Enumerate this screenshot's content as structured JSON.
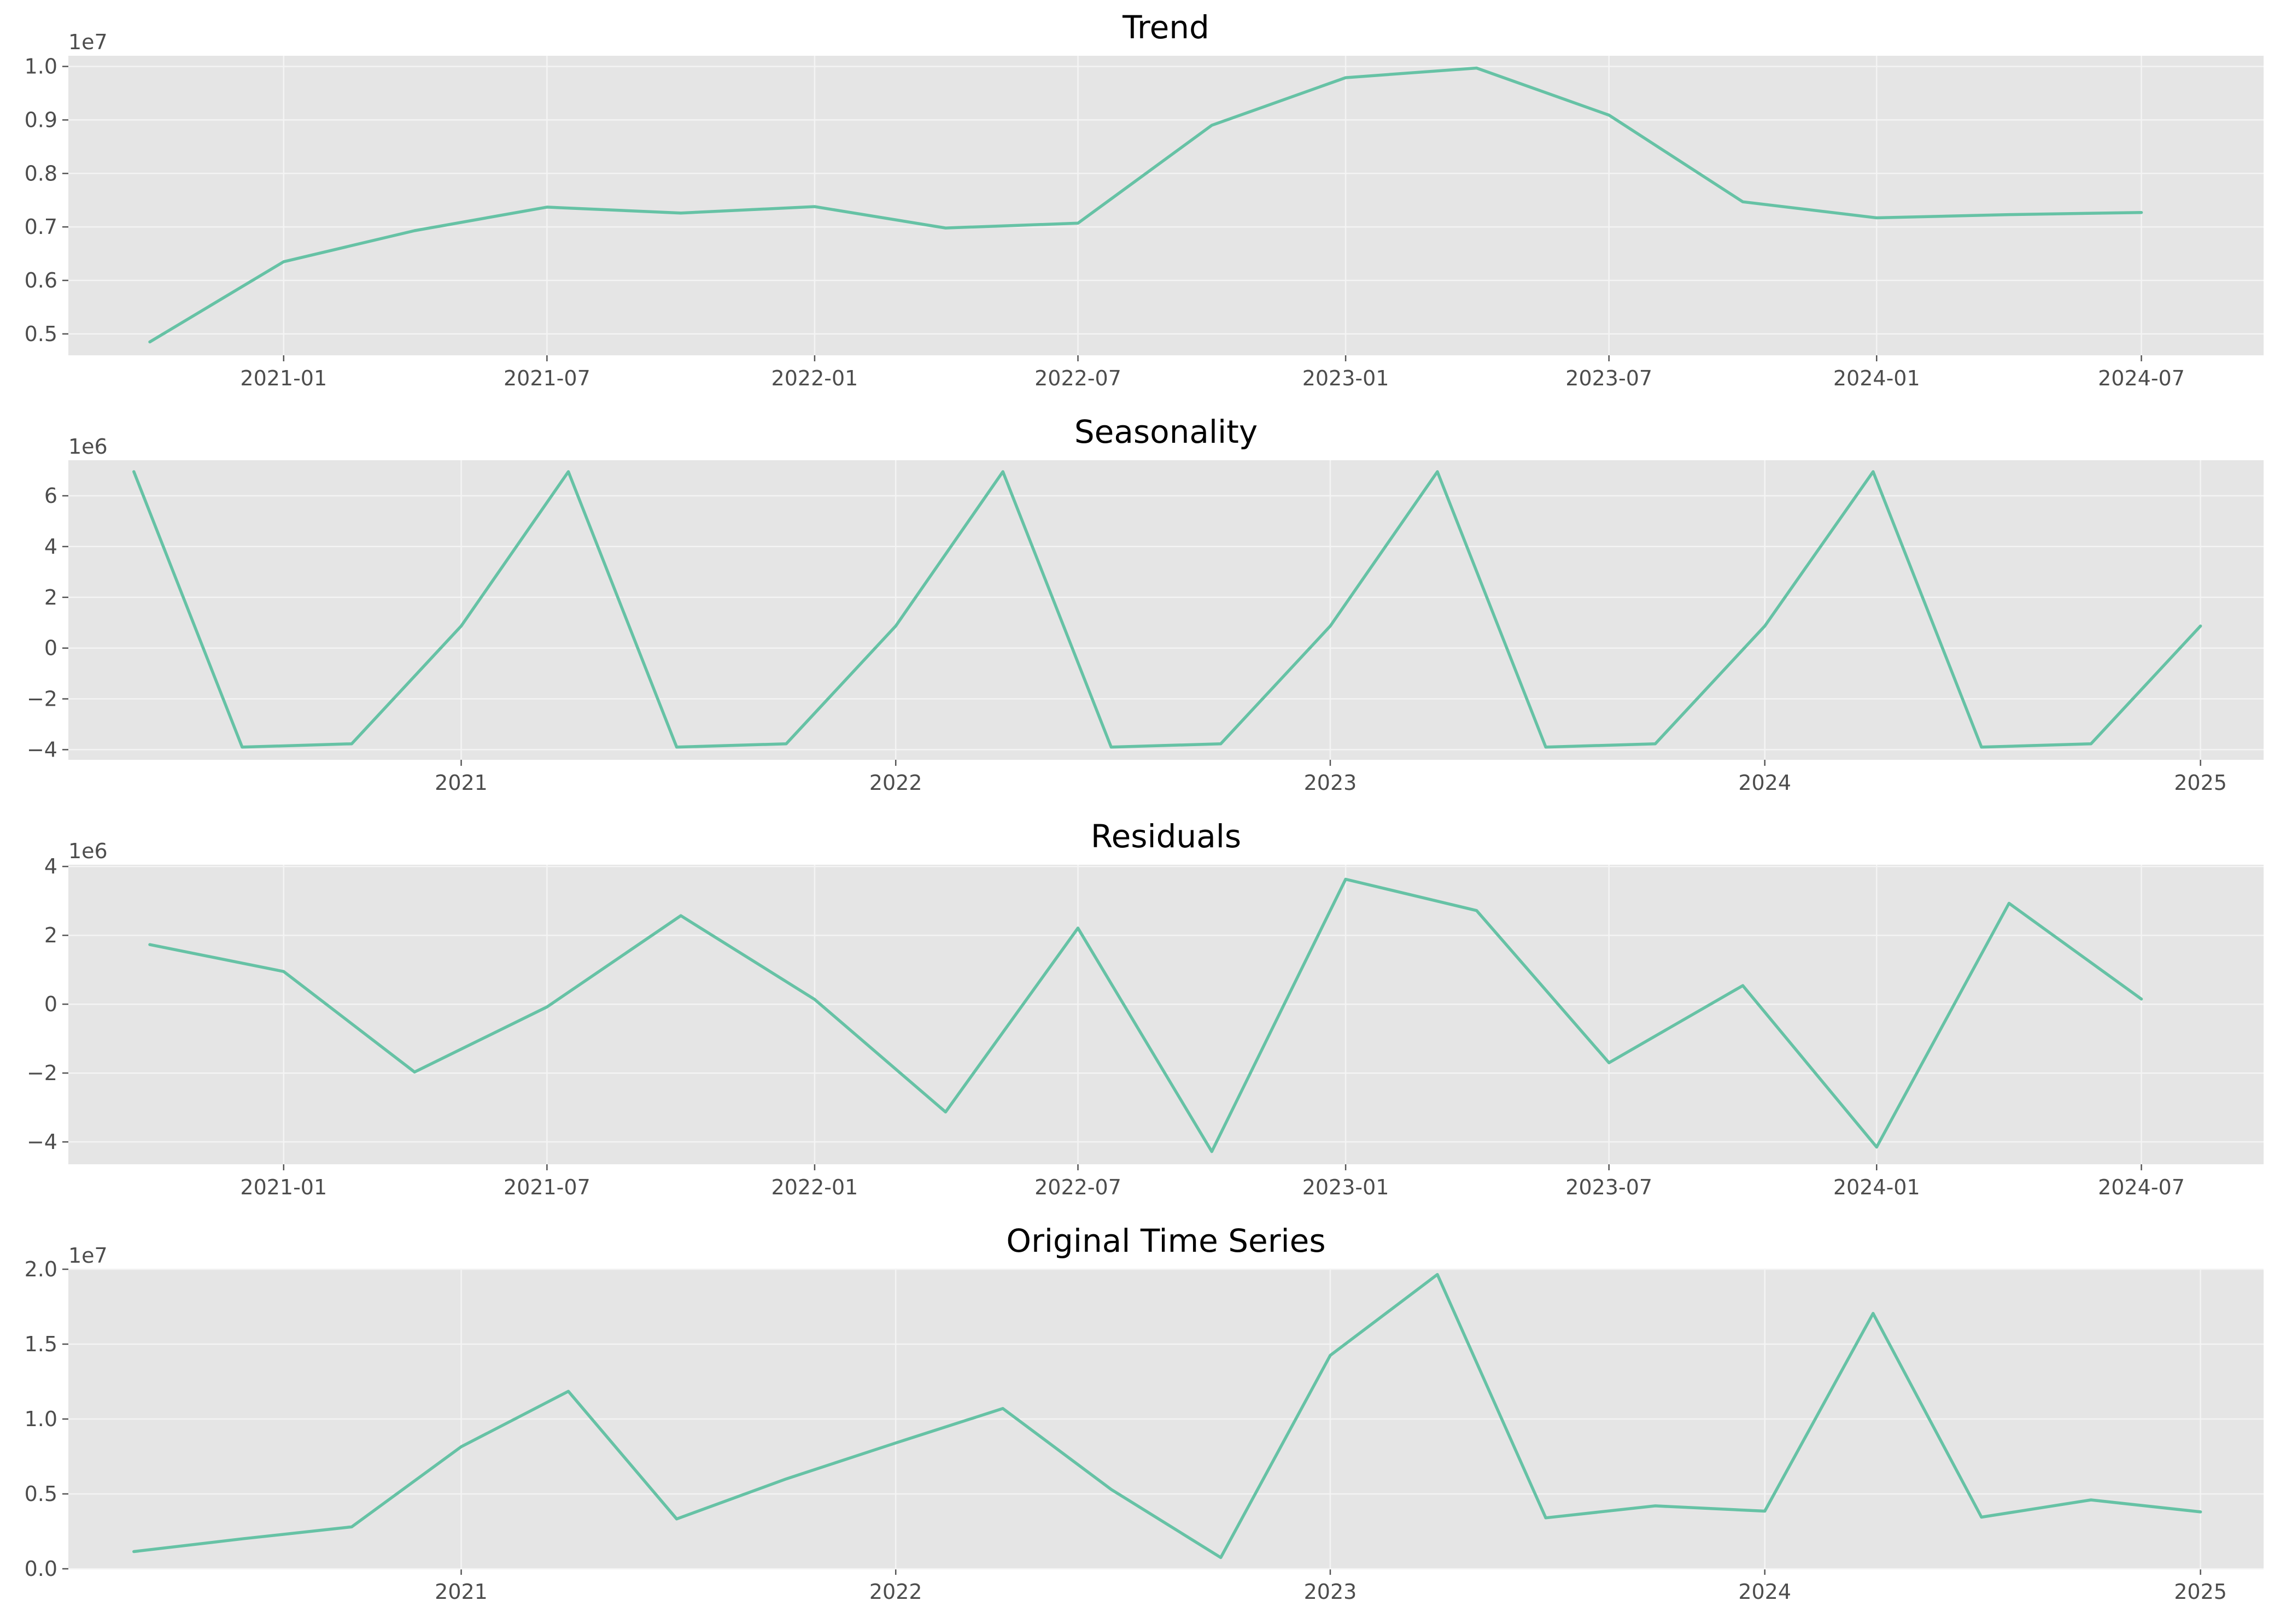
{
  "chart_data": [
    {
      "type": "line",
      "title": "Trend",
      "xlabel": "",
      "ylabel": "",
      "y_offset_label": "1e7",
      "y_scale": 10000000,
      "grid": true,
      "x": [
        "2020-10-01",
        "2021-01-01",
        "2021-04-01",
        "2021-07-01",
        "2021-10-01",
        "2022-01-01",
        "2022-04-01",
        "2022-07-01",
        "2022-10-01",
        "2023-01-01",
        "2023-04-01",
        "2023-07-01",
        "2023-10-01",
        "2024-01-01",
        "2024-04-01",
        "2024-07-01"
      ],
      "series": [
        {
          "values": [
            4850000,
            6350000,
            6930000,
            7370000,
            7260000,
            7380000,
            6980000,
            7070000,
            8900000,
            9790000,
            9970000,
            9090000,
            7470000,
            7170000,
            7230000,
            7270000
          ]
        }
      ],
      "xlim": [
        "2020-08-06",
        "2024-09-23"
      ],
      "ylim": [
        4600000,
        10200000
      ],
      "x_ticks": [
        "2021-01-01",
        "2021-07-01",
        "2022-01-01",
        "2022-07-01",
        "2023-01-01",
        "2023-07-01",
        "2024-01-01",
        "2024-07-01"
      ],
      "x_tick_labels": [
        "2021-01",
        "2021-07",
        "2022-01",
        "2022-07",
        "2023-01",
        "2023-07",
        "2024-01",
        "2024-07"
      ],
      "y_ticks": [
        5000000,
        6000000,
        7000000,
        8000000,
        9000000,
        10000000
      ],
      "y_tick_labels": [
        "0.5",
        "0.6",
        "0.7",
        "0.8",
        "0.9",
        "1.0"
      ]
    },
    {
      "type": "line",
      "title": "Seasonality",
      "xlabel": "",
      "ylabel": "",
      "y_offset_label": "1e6",
      "y_scale": 1000000,
      "grid": true,
      "x": [
        "2020-04-01",
        "2020-07-01",
        "2020-10-01",
        "2021-01-01",
        "2021-04-01",
        "2021-07-01",
        "2021-10-01",
        "2022-01-01",
        "2022-04-01",
        "2022-07-01",
        "2022-10-01",
        "2023-01-01",
        "2023-04-01",
        "2023-07-01",
        "2023-10-01",
        "2024-01-01",
        "2024-04-01",
        "2024-07-01",
        "2024-10-01",
        "2025-01-01"
      ],
      "series": [
        {
          "values": [
            6950000,
            -3900000,
            -3770000,
            870000,
            6950000,
            -3900000,
            -3770000,
            870000,
            6950000,
            -3900000,
            -3770000,
            870000,
            6950000,
            -3900000,
            -3770000,
            870000,
            6950000,
            -3900000,
            -3770000,
            870000
          ]
        }
      ],
      "xlim": [
        "2020-02-06",
        "2025-02-23"
      ],
      "ylim": [
        -4400000,
        7400000
      ],
      "x_ticks": [
        "2021-01-01",
        "2022-01-01",
        "2023-01-01",
        "2024-01-01",
        "2025-01-01"
      ],
      "x_tick_labels": [
        "2021",
        "2022",
        "2023",
        "2024",
        "2025"
      ],
      "y_ticks": [
        -4000000,
        -2000000,
        0,
        2000000,
        4000000,
        6000000
      ],
      "y_tick_labels": [
        "−4",
        "−2",
        "0",
        "2",
        "4",
        "6"
      ]
    },
    {
      "type": "line",
      "title": "Residuals",
      "xlabel": "",
      "ylabel": "",
      "y_offset_label": "1e6",
      "y_scale": 1000000,
      "grid": true,
      "x": [
        "2020-10-01",
        "2021-01-01",
        "2021-04-01",
        "2021-07-01",
        "2021-10-01",
        "2022-01-01",
        "2022-04-01",
        "2022-07-01",
        "2022-10-01",
        "2023-01-01",
        "2023-04-01",
        "2023-07-01",
        "2023-10-01",
        "2024-01-01",
        "2024-04-01",
        "2024-07-01"
      ],
      "series": [
        {
          "values": [
            1730000,
            950000,
            -1970000,
            -80000,
            2570000,
            140000,
            -3130000,
            2210000,
            -4280000,
            3630000,
            2720000,
            -1700000,
            540000,
            -4150000,
            2930000,
            150000
          ]
        }
      ],
      "xlim": [
        "2020-08-06",
        "2024-09-23"
      ],
      "ylim": [
        -4650000,
        4050000
      ],
      "x_ticks": [
        "2021-01-01",
        "2021-07-01",
        "2022-01-01",
        "2022-07-01",
        "2023-01-01",
        "2023-07-01",
        "2024-01-01",
        "2024-07-01"
      ],
      "x_tick_labels": [
        "2021-01",
        "2021-07",
        "2022-01",
        "2022-07",
        "2023-01",
        "2023-07",
        "2024-01",
        "2024-07"
      ],
      "y_ticks": [
        -4000000,
        -2000000,
        0,
        2000000,
        4000000
      ],
      "y_tick_labels": [
        "−4",
        "−2",
        "0",
        "2",
        "4"
      ]
    },
    {
      "type": "line",
      "title": "Original Time Series",
      "xlabel": "",
      "ylabel": "",
      "y_offset_label": "1e7",
      "y_scale": 10000000,
      "grid": true,
      "x": [
        "2020-04-01",
        "2020-07-01",
        "2020-10-01",
        "2021-01-01",
        "2021-04-01",
        "2021-07-01",
        "2021-10-01",
        "2022-01-01",
        "2022-04-01",
        "2022-07-01",
        "2022-10-01",
        "2023-01-01",
        "2023-04-01",
        "2023-07-01",
        "2023-10-01",
        "2024-01-01",
        "2024-04-01",
        "2024-07-01",
        "2024-10-01",
        "2025-01-01"
      ],
      "series": [
        {
          "values": [
            1150000,
            2000000,
            2800000,
            8150000,
            11850000,
            3330000,
            6000000,
            8400000,
            10700000,
            5300000,
            750000,
            14250000,
            19650000,
            3400000,
            4200000,
            3850000,
            17050000,
            3450000,
            4600000,
            3800000
          ]
        }
      ],
      "xlim": [
        "2020-02-06",
        "2025-02-23"
      ],
      "ylim": [
        0,
        20000000
      ],
      "x_ticks": [
        "2021-01-01",
        "2022-01-01",
        "2023-01-01",
        "2024-01-01",
        "2025-01-01"
      ],
      "x_tick_labels": [
        "2021",
        "2022",
        "2023",
        "2024",
        "2025"
      ],
      "y_ticks": [
        0,
        5000000,
        10000000,
        15000000,
        20000000
      ],
      "y_tick_labels": [
        "0.0",
        "0.5",
        "1.0",
        "1.5",
        "2.0"
      ]
    }
  ]
}
